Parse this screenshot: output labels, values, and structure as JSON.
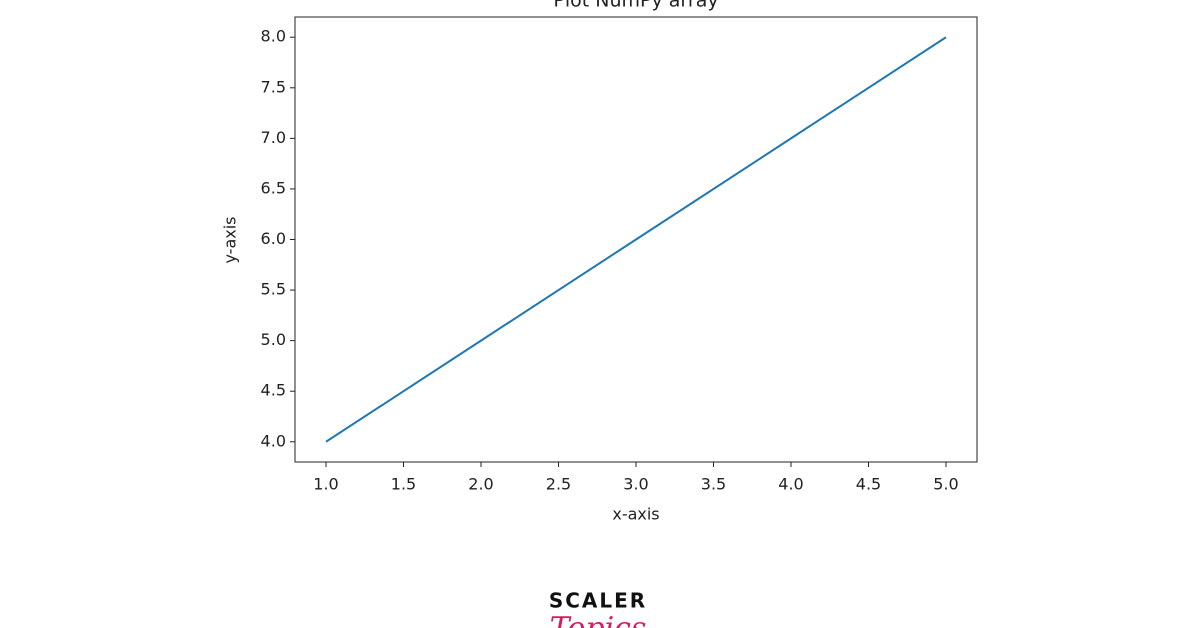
{
  "chart_data": {
    "type": "line",
    "title": "Plot NumPy array",
    "x_label": "x-axis",
    "y_label": "y-axis",
    "x": [
      1,
      2,
      3,
      4,
      5
    ],
    "values": [
      4,
      5,
      6,
      7,
      8
    ],
    "color": "#1f77b4",
    "xlim": [
      0.8,
      5.2
    ],
    "xticks": [
      {
        "value": 1,
        "label": "1.0"
      },
      1.5,
      {
        "value": 2,
        "label": "2.0"
      },
      2.5,
      {
        "value": 3,
        "label": "3.0"
      },
      3.5,
      {
        "value": 4,
        "label": "4.0"
      },
      4.5,
      {
        "value": 5,
        "label": "5.0"
      }
    ],
    "ylim": [
      3.8,
      8.2
    ],
    "yticks": [
      {
        "value": 4,
        "label": "4.0"
      },
      4.5,
      {
        "value": 5,
        "label": "5.0"
      },
      5.5,
      {
        "value": 6,
        "label": "6.0"
      },
      6.5,
      {
        "value": 7,
        "label": "7.0"
      },
      7.5,
      {
        "value": 8,
        "label": "8.0"
      }
    ],
    "grid": false
  },
  "branding": {
    "name": "SCALER",
    "tagline": "Topics"
  }
}
